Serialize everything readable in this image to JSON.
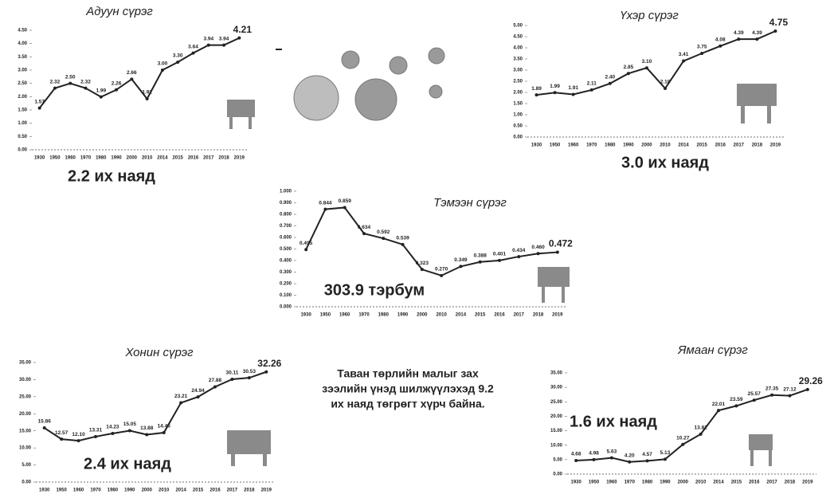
{
  "chart_data": [
    {
      "type": "line",
      "title": "Адуун сүрэг",
      "annotation": "2.2 их наяд",
      "color": "#222222",
      "categories": [
        "1930",
        "1950",
        "1960",
        "1970",
        "1980",
        "1990",
        "2000",
        "2010",
        "2014",
        "2015",
        "2016",
        "2017",
        "2018",
        "2019"
      ],
      "values": [
        1.57,
        2.32,
        2.5,
        2.32,
        1.99,
        2.26,
        2.66,
        1.92,
        3.0,
        3.3,
        3.64,
        3.94,
        3.94,
        4.21
      ],
      "value_labels": [
        "1.57",
        "2.32",
        "2.50",
        "2.32",
        "1.99",
        "2.26",
        "2.66",
        "1.92",
        "3.00",
        "3.30",
        "3.64",
        "3.94",
        "3.94",
        "4.21"
      ],
      "ylim": [
        0,
        4.5
      ],
      "yticks": [
        {
          "value": 0,
          "label": "0.00"
        },
        {
          "value": 0.5,
          "label": "0.50"
        },
        {
          "value": 1,
          "label": "1.00"
        },
        {
          "value": 1.5,
          "label": "1.50"
        },
        {
          "value": 2,
          "label": "2.00"
        },
        {
          "value": 2.5,
          "label": "2.50"
        },
        {
          "value": 3,
          "label": "3.00"
        },
        {
          "value": 3.5,
          "label": "3.50"
        },
        {
          "value": 4,
          "label": "4.00"
        },
        {
          "value": 4.5,
          "label": "4.50"
        }
      ]
    },
    {
      "type": "line",
      "title": "Үхэр сүрэг",
      "annotation": "3.0 их наяд",
      "color": "#222222",
      "categories": [
        "1930",
        "1950",
        "1960",
        "1970",
        "1980",
        "1990",
        "2000",
        "2010",
        "2014",
        "2015",
        "2016",
        "2017",
        "2018",
        "2019"
      ],
      "values": [
        1.89,
        1.99,
        1.91,
        2.11,
        2.4,
        2.85,
        3.1,
        2.18,
        3.41,
        3.75,
        4.08,
        4.39,
        4.39,
        4.75
      ],
      "value_labels": [
        "1.89",
        "1.99",
        "1.91",
        "2.11",
        "2.40",
        "2.85",
        "3.10",
        "2.18",
        "3.41",
        "3.75",
        "4.08",
        "4.39",
        "4.39",
        "4.75"
      ],
      "ylim": [
        0,
        5
      ],
      "yticks": [
        {
          "value": 0,
          "label": "0.00"
        },
        {
          "value": 0.5,
          "label": "0.50"
        },
        {
          "value": 1,
          "label": "1.00"
        },
        {
          "value": 1.5,
          "label": "1.50"
        },
        {
          "value": 2,
          "label": "2.00"
        },
        {
          "value": 2.5,
          "label": "2.50"
        },
        {
          "value": 3,
          "label": "3.00"
        },
        {
          "value": 3.5,
          "label": "3.50"
        },
        {
          "value": 4,
          "label": "4.00"
        },
        {
          "value": 4.5,
          "label": "4.50"
        },
        {
          "value": 5,
          "label": "5.00"
        }
      ]
    },
    {
      "type": "line",
      "title": "Тэмээн сүрэг",
      "annotation": "303.9 тэрбум",
      "color": "#222222",
      "categories": [
        "1930",
        "1950",
        "1960",
        "1970",
        "1980",
        "1990",
        "2000",
        "2010",
        "2014",
        "2015",
        "2016",
        "2017",
        "2018",
        "2019"
      ],
      "values": [
        0.495,
        0.844,
        0.859,
        0.634,
        0.592,
        0.539,
        0.323,
        0.27,
        0.349,
        0.388,
        0.401,
        0.434,
        0.46,
        0.472
      ],
      "value_labels": [
        "0.495",
        "0.844",
        "0.859",
        "0.634",
        "0.592",
        "0.539",
        "0.323",
        "0.270",
        "0.349",
        "0.388",
        "0.401",
        "0.434",
        "0.460",
        "0.472"
      ],
      "ylim": [
        0,
        1
      ],
      "yticks": [
        {
          "value": 0,
          "label": "0.000"
        },
        {
          "value": 0.1,
          "label": "0.100"
        },
        {
          "value": 0.2,
          "label": "0.200"
        },
        {
          "value": 0.3,
          "label": "0.300"
        },
        {
          "value": 0.4,
          "label": "0.400"
        },
        {
          "value": 0.5,
          "label": "0.500"
        },
        {
          "value": 0.6,
          "label": "0.600"
        },
        {
          "value": 0.7,
          "label": "0.700"
        },
        {
          "value": 0.8,
          "label": "0.800"
        },
        {
          "value": 0.9,
          "label": "0.900"
        },
        {
          "value": 1,
          "label": "1.000"
        }
      ]
    },
    {
      "type": "line",
      "title": "Хонин сүрэг",
      "annotation": "2.4 их наяд",
      "color": "#222222",
      "categories": [
        "1930",
        "1950",
        "1960",
        "1970",
        "1980",
        "1990",
        "2000",
        "2010",
        "2014",
        "2015",
        "2016",
        "2017",
        "2018",
        "2019"
      ],
      "values": [
        15.86,
        12.57,
        12.1,
        13.31,
        14.23,
        15.05,
        13.88,
        14.46,
        23.21,
        24.94,
        27.88,
        30.11,
        30.53,
        32.26
      ],
      "value_labels": [
        "15.86",
        "12.57",
        "12.10",
        "13.31",
        "14.23",
        "15.05",
        "13.88",
        "14.46",
        "23.21",
        "24.94",
        "27.88",
        "30.11",
        "30.53",
        "32.26"
      ],
      "ylim": [
        0,
        35
      ],
      "yticks": [
        {
          "value": 0,
          "label": "0.00"
        },
        {
          "value": 5,
          "label": "5.00"
        },
        {
          "value": 10,
          "label": "10.00"
        },
        {
          "value": 15,
          "label": "15.00"
        },
        {
          "value": 20,
          "label": "20.00"
        },
        {
          "value": 25,
          "label": "25.00"
        },
        {
          "value": 30,
          "label": "30.00"
        },
        {
          "value": 35,
          "label": "35.00"
        }
      ]
    },
    {
      "type": "line",
      "title": "Ямаан сүрэг",
      "annotation": "1.6 их наяд",
      "color": "#222222",
      "categories": [
        "1930",
        "1950",
        "1960",
        "1970",
        "1980",
        "1990",
        "2000",
        "2010",
        "2014",
        "2015",
        "2016",
        "2017",
        "2018",
        "2019"
      ],
      "values": [
        4.68,
        4.98,
        5.63,
        4.2,
        4.57,
        5.13,
        10.27,
        13.81,
        22.01,
        23.59,
        25.57,
        27.35,
        27.12,
        29.26
      ],
      "value_labels": [
        "4.68",
        "4.98",
        "5.63",
        "4.20",
        "4.57",
        "5.13",
        "10.27",
        "13.81",
        "22.01",
        "23.59",
        "25.57",
        "27.35",
        "27.12",
        "29.26"
      ],
      "ylim": [
        0,
        35
      ],
      "yticks": [
        {
          "value": 0,
          "label": "0.00"
        },
        {
          "value": 5,
          "label": "5.00"
        },
        {
          "value": 10,
          "label": "10.00"
        },
        {
          "value": 15,
          "label": "15.00"
        },
        {
          "value": 20,
          "label": "20.00"
        },
        {
          "value": 25,
          "label": "25.00"
        },
        {
          "value": 30,
          "label": "30.00"
        },
        {
          "value": 35,
          "label": "35.00"
        }
      ]
    }
  ],
  "summary": {
    "lines": [
      "Таван төрлийн малыг зах",
      "зээлийн үнэд шилжүүлэхэд 9.2",
      "их наяд төгрөгт хүрч байна."
    ]
  }
}
